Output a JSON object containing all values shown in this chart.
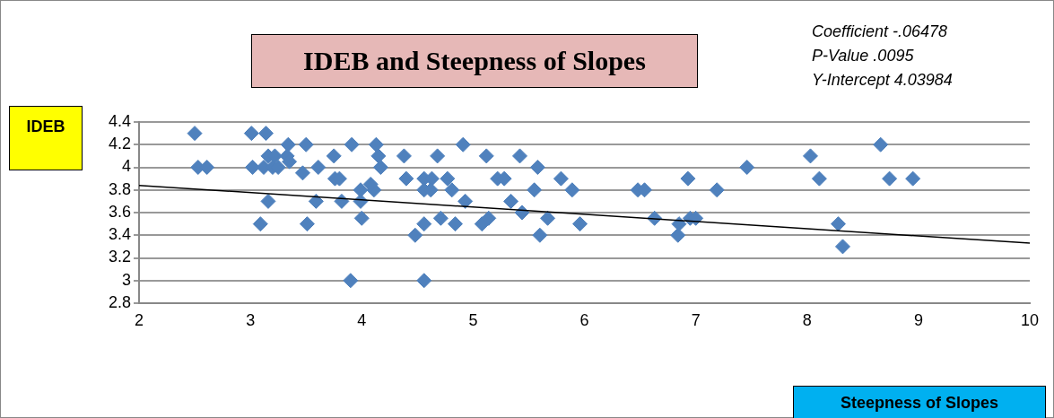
{
  "chart_data": {
    "type": "scatter",
    "title": "IDEB and Steepness of Slopes",
    "xlabel": "Steepness of Slopes",
    "ylabel": "IDEB",
    "annotations": [
      "Coefficient -.06478",
      "P-Value .0095",
      "Y-Intercept 4.03984"
    ],
    "xlim": [
      2,
      10
    ],
    "xticks": [
      2,
      3,
      4,
      5,
      6,
      7,
      8,
      9,
      10
    ],
    "ylim": [
      2.8,
      4.4
    ],
    "yticks": [
      2.8,
      3,
      3.2,
      3.4,
      3.6,
      3.8,
      4,
      4.2,
      4.4
    ],
    "grid": "y",
    "series": [
      {
        "marker": "diamond",
        "color": "#4f81bd",
        "x": [
          2.5,
          2.53,
          2.61,
          3.01,
          3.14,
          3.02,
          3.12,
          3.2,
          3.25,
          3.16,
          3.22,
          3.34,
          3.33,
          3.35,
          3.5,
          3.47,
          3.61,
          3.75,
          3.76,
          3.8,
          3.91,
          4.13,
          4.15,
          4.17,
          3.99,
          4.11,
          4.08,
          3.16,
          3.59,
          3.82,
          3.99,
          3.09,
          3.51,
          4.0,
          3.9,
          4.38,
          4.4,
          4.56,
          4.63,
          4.56,
          4.62,
          4.68,
          4.77,
          4.81,
          4.91,
          4.93,
          4.71,
          4.56,
          4.48,
          4.84,
          5.08,
          5.14,
          5.12,
          5.22,
          5.28,
          5.34,
          5.44,
          5.42,
          5.58,
          5.55,
          5.67,
          5.6,
          5.79,
          5.89,
          5.96,
          4.56,
          6.48,
          6.54,
          6.63,
          6.93,
          6.84,
          6.85,
          6.95,
          7.0,
          7.19,
          7.46,
          8.03,
          8.11,
          8.28,
          8.32,
          8.66,
          8.74,
          8.95
        ],
        "values": [
          4.3,
          4.0,
          4.0,
          4.3,
          4.3,
          4.0,
          4.0,
          4.0,
          4.0,
          4.1,
          4.1,
          4.2,
          4.1,
          4.05,
          4.2,
          3.95,
          4.0,
          4.1,
          3.9,
          3.9,
          4.2,
          4.2,
          4.1,
          4.0,
          3.8,
          3.8,
          3.85,
          3.7,
          3.7,
          3.7,
          3.7,
          3.5,
          3.5,
          3.55,
          3.0,
          4.1,
          3.9,
          3.9,
          3.9,
          3.8,
          3.8,
          4.1,
          3.9,
          3.8,
          4.2,
          3.7,
          3.55,
          3.5,
          3.4,
          3.5,
          3.5,
          3.55,
          4.1,
          3.9,
          3.9,
          3.7,
          3.6,
          4.1,
          4.0,
          3.8,
          3.55,
          3.4,
          3.9,
          3.8,
          3.5,
          3.0,
          3.8,
          3.8,
          3.55,
          3.9,
          3.4,
          3.5,
          3.55,
          3.55,
          3.8,
          4.0,
          4.1,
          3.9,
          3.5,
          3.3,
          4.2,
          3.9,
          3.9
        ]
      },
      {
        "type": "line",
        "color": "#000000",
        "x": [
          2,
          10
        ],
        "values": [
          3.84,
          3.33
        ]
      }
    ]
  }
}
